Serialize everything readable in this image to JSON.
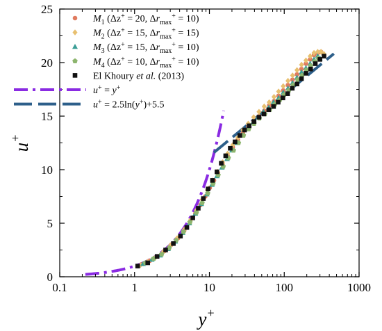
{
  "chart_data": {
    "type": "scatter",
    "xlabel": "y+",
    "ylabel": "u+",
    "x_scale": "log",
    "xlim": [
      0.1,
      1000
    ],
    "ylim": [
      0,
      25
    ],
    "x_ticks": [
      0.1,
      1,
      10,
      100,
      1000
    ],
    "x_tick_labels": [
      "0.1",
      "1",
      "10",
      "100",
      "1000"
    ],
    "y_ticks": [
      0,
      5,
      10,
      15,
      20,
      25
    ],
    "y_tick_labels": [
      "0",
      "5",
      "10",
      "15",
      "20",
      "25"
    ],
    "grid": false,
    "legend_placement": "top-left",
    "legend": [
      {
        "parts": [
          {
            "t": "M",
            "i": true
          },
          {
            "t": "1",
            "sub": true
          },
          {
            "t": " (Δz"
          },
          {
            "t": "+",
            "sup": true
          },
          {
            "t": " = 20,  Δ"
          },
          {
            "t": "r",
            "i": true
          },
          {
            "t": "max",
            "sub": true
          },
          {
            "t": "+",
            "sup": true
          },
          {
            "t": " = 10)"
          }
        ]
      },
      {
        "parts": [
          {
            "t": "M",
            "i": true
          },
          {
            "t": "2",
            "sub": true
          },
          {
            "t": " (Δz"
          },
          {
            "t": "+",
            "sup": true
          },
          {
            "t": " = 15,  Δ"
          },
          {
            "t": "r",
            "i": true
          },
          {
            "t": "max",
            "sub": true
          },
          {
            "t": "+",
            "sup": true
          },
          {
            "t": " = 15)"
          }
        ]
      },
      {
        "parts": [
          {
            "t": "M",
            "i": true
          },
          {
            "t": "3",
            "sub": true
          },
          {
            "t": " (Δz"
          },
          {
            "t": "+",
            "sup": true
          },
          {
            "t": " = 15,  Δ"
          },
          {
            "t": "r",
            "i": true
          },
          {
            "t": "max",
            "sub": true
          },
          {
            "t": "+",
            "sup": true
          },
          {
            "t": " = 10)"
          }
        ]
      },
      {
        "parts": [
          {
            "t": "M",
            "i": true
          },
          {
            "t": "4",
            "sub": true
          },
          {
            "t": " (Δz"
          },
          {
            "t": "+",
            "sup": true
          },
          {
            "t": " = 10,  Δ"
          },
          {
            "t": "r",
            "i": true
          },
          {
            "t": "max",
            "sub": true
          },
          {
            "t": "+",
            "sup": true
          },
          {
            "t": " = 10)"
          }
        ]
      },
      {
        "parts": [
          {
            "t": "El Khoury "
          },
          {
            "t": "et al.",
            "i": true
          },
          {
            "t": " (2013)"
          }
        ]
      },
      {
        "parts": [
          {
            "t": "u",
            "i": true
          },
          {
            "t": "+",
            "sup": true
          },
          {
            "t": " = "
          },
          {
            "t": "y",
            "i": true
          },
          {
            "t": "+",
            "sup": true
          }
        ]
      },
      {
        "parts": [
          {
            "t": "u",
            "i": true
          },
          {
            "t": "+",
            "sup": true
          },
          {
            "t": " = 2.5ln("
          },
          {
            "t": "y",
            "i": true
          },
          {
            "t": "+",
            "sup": true
          },
          {
            "t": ")+5.5"
          }
        ]
      }
    ],
    "series": [
      {
        "name": "M1",
        "marker": "circle",
        "color": "#E07B5F",
        "x": [
          1.1,
          1.3,
          1.6,
          2.0,
          2.5,
          3.1,
          3.8,
          4.6,
          5.5,
          6.5,
          7.6,
          8.8,
          10.1,
          11.5,
          13,
          15,
          17.5,
          20.5,
          24,
          28,
          33,
          39,
          46,
          54,
          63,
          73,
          84,
          97,
          112,
          129,
          148,
          170,
          195,
          222,
          250,
          280,
          310,
          340
        ],
        "y": [
          1.0,
          1.2,
          1.5,
          1.9,
          2.4,
          3.0,
          3.6,
          4.3,
          5.1,
          5.9,
          6.7,
          7.5,
          8.3,
          9.0,
          9.7,
          10.5,
          11.3,
          12.1,
          12.8,
          13.4,
          14.0,
          14.5,
          15.0,
          15.5,
          16.0,
          16.4,
          16.9,
          17.4,
          17.9,
          18.4,
          18.9,
          19.4,
          19.9,
          20.3,
          20.7,
          20.9,
          21.0,
          20.7
        ]
      },
      {
        "name": "M2",
        "marker": "diamond",
        "color": "#E8C070",
        "x": [
          1.2,
          1.5,
          1.9,
          2.4,
          3.0,
          3.7,
          4.6,
          5.6,
          6.7,
          8.0,
          9.4,
          11,
          12.8,
          15,
          17.5,
          20.5,
          24,
          28,
          33,
          39,
          46,
          54,
          63,
          73,
          84,
          97,
          112,
          129,
          148,
          170,
          195,
          222,
          250,
          280,
          310,
          340
        ],
        "y": [
          1.1,
          1.4,
          1.8,
          2.3,
          2.9,
          3.6,
          4.4,
          5.3,
          6.2,
          7.2,
          8.1,
          9.0,
          9.8,
          10.7,
          11.5,
          12.3,
          13.0,
          13.7,
          14.3,
          14.9,
          15.4,
          15.9,
          16.3,
          16.8,
          17.3,
          17.8,
          18.3,
          18.8,
          19.3,
          19.8,
          20.2,
          20.6,
          20.9,
          21.0,
          21.0,
          20.8
        ]
      },
      {
        "name": "M3",
        "marker": "triangle",
        "color": "#3A9E96",
        "x": [
          1.3,
          1.7,
          2.2,
          2.8,
          3.5,
          4.4,
          5.4,
          6.5,
          7.8,
          9.2,
          10.8,
          12.6,
          14.7,
          17.2,
          20,
          23.5,
          27.5,
          32,
          38,
          45,
          53,
          62,
          72,
          84,
          97,
          112,
          129,
          148,
          170,
          195,
          222,
          250,
          280,
          300
        ],
        "y": [
          1.2,
          1.6,
          2.0,
          2.6,
          3.3,
          4.1,
          5.0,
          5.9,
          6.8,
          7.7,
          8.6,
          9.4,
          10.2,
          11.0,
          11.8,
          12.5,
          13.2,
          13.8,
          14.4,
          14.9,
          15.4,
          15.8,
          16.3,
          16.7,
          17.2,
          17.6,
          18.1,
          18.6,
          19.1,
          19.5,
          19.9,
          20.3,
          20.6,
          20.4
        ]
      },
      {
        "name": "M4",
        "marker": "pentagon",
        "color": "#8DB56E",
        "x": [
          1.4,
          1.8,
          2.3,
          2.9,
          3.6,
          4.5,
          5.5,
          6.7,
          8.0,
          9.5,
          11.2,
          13.1,
          15.3,
          17.9,
          21,
          24.5,
          28.5,
          33.5,
          39.5,
          46.5,
          55,
          64,
          75,
          87,
          100,
          115,
          132,
          151,
          173,
          198,
          225,
          255,
          285
        ],
        "y": [
          1.3,
          1.7,
          2.1,
          2.7,
          3.4,
          4.2,
          5.1,
          6.0,
          6.9,
          7.8,
          8.7,
          9.5,
          10.3,
          11.1,
          11.8,
          12.5,
          13.2,
          13.8,
          14.3,
          14.8,
          15.2,
          15.6,
          16.1,
          16.5,
          17.0,
          17.4,
          17.9,
          18.4,
          18.8,
          19.3,
          19.7,
          20.1,
          20.4
        ]
      },
      {
        "name": "El Khoury et al. (2013)",
        "marker": "square",
        "color": "#111111",
        "x": [
          1.1,
          1.5,
          2.0,
          2.6,
          3.3,
          4.1,
          5.0,
          6.0,
          7.1,
          8.3,
          9.6,
          11,
          12.6,
          14.4,
          16.5,
          19,
          22,
          25.5,
          29.5,
          34,
          39.5,
          46,
          53.5,
          62,
          72,
          83,
          96,
          111,
          128,
          148,
          170,
          195,
          225,
          260,
          300,
          340
        ],
        "y": [
          1.0,
          1.3,
          1.9,
          2.5,
          3.1,
          3.8,
          4.6,
          5.5,
          6.4,
          7.3,
          8.2,
          9.0,
          9.8,
          10.6,
          11.3,
          12.0,
          12.6,
          13.2,
          13.7,
          14.1,
          14.5,
          14.9,
          15.2,
          15.6,
          15.9,
          16.3,
          16.7,
          17.1,
          17.6,
          18.0,
          18.5,
          19.0,
          19.4,
          19.9,
          20.3,
          20.6
        ]
      }
    ],
    "reference_lines": [
      {
        "name": "u+ = y+",
        "style": "dash-dot",
        "color": "#8A2BE2",
        "x_range": [
          0.22,
          15.5
        ]
      },
      {
        "name": "u+ = 2.5ln(y+)+5.5",
        "style": "dash",
        "color": "#2D5F8A",
        "x_range": [
          11.5,
          460
        ]
      }
    ]
  }
}
